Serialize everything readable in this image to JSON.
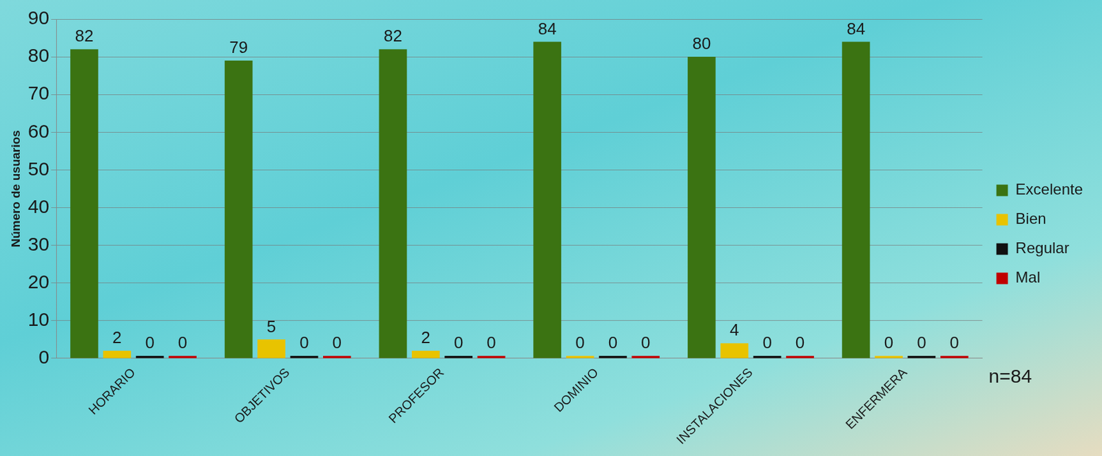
{
  "chart_data": {
    "type": "bar",
    "categories": [
      "HORARIO",
      "OBJETIVOS",
      "PROFESOR",
      "DOMINIO",
      "INSTALACIONES",
      "ENFERMERA"
    ],
    "series": [
      {
        "name": "Excelente",
        "color": "#3b7312",
        "values": [
          82,
          79,
          82,
          84,
          80,
          84
        ]
      },
      {
        "name": "Bien",
        "color": "#e8c300",
        "values": [
          2,
          5,
          2,
          0,
          4,
          0
        ]
      },
      {
        "name": "Regular",
        "color": "#111111",
        "values": [
          0,
          0,
          0,
          0,
          0,
          0
        ]
      },
      {
        "name": "Mal",
        "color": "#c00000",
        "values": [
          0,
          0,
          0,
          0,
          0,
          0
        ]
      }
    ],
    "y_label": "Número de usuarios",
    "ylim": [
      0,
      90
    ],
    "yticks": [
      0,
      10,
      20,
      30,
      40,
      50,
      60,
      70,
      80,
      90
    ],
    "grid": true,
    "legend": "right",
    "data_labels": true,
    "annotations": [
      "n=84"
    ]
  }
}
